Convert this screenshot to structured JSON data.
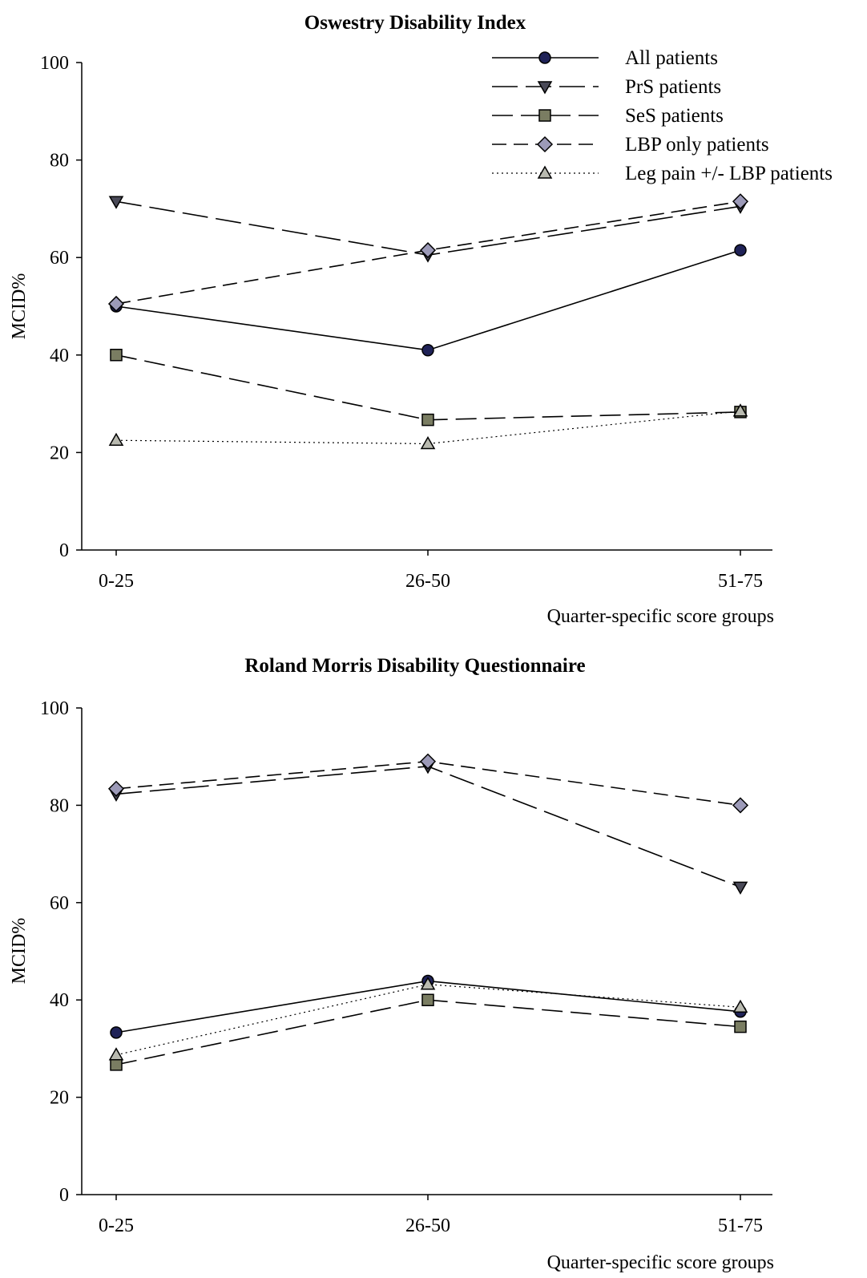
{
  "chart_data": [
    {
      "type": "line",
      "title": "Oswestry Disability Index",
      "xlabel": "Quarter-specific score groups",
      "ylabel": "MCID%",
      "categories": [
        "0-25",
        "26-50",
        "51-75"
      ],
      "ylim": [
        0,
        100
      ],
      "yticks": [
        "0",
        "20",
        "40",
        "60",
        "80",
        "100"
      ],
      "legend": "top-right",
      "series": [
        {
          "name": "All patients",
          "values": [
            50,
            41,
            61.5
          ]
        },
        {
          "name": "PrS patients",
          "values": [
            71.5,
            60.5,
            70.5
          ]
        },
        {
          "name": "SeS patients",
          "values": [
            40,
            26.7,
            28.3
          ]
        },
        {
          "name": "LBP only patients",
          "values": [
            50.5,
            61.5,
            71.5
          ]
        },
        {
          "name": "Leg pain +/- LBP patients",
          "values": [
            22.5,
            21.8,
            28.5
          ]
        }
      ]
    },
    {
      "type": "line",
      "title": "Roland Morris Disability Questionnaire",
      "xlabel": "Quarter-specific score groups",
      "ylabel": "MCID%",
      "categories": [
        "0-25",
        "26-50",
        "51-75"
      ],
      "ylim": [
        0,
        100
      ],
      "yticks": [
        "0",
        "20",
        "40",
        "60",
        "80",
        "100"
      ],
      "series": [
        {
          "name": "All patients",
          "values": [
            33.3,
            43.9,
            37.6
          ]
        },
        {
          "name": "PrS patients",
          "values": [
            82.3,
            88,
            63.2
          ]
        },
        {
          "name": "SeS patients",
          "values": [
            26.7,
            40,
            34.5
          ]
        },
        {
          "name": "LBP only patients",
          "values": [
            83.4,
            89,
            80
          ]
        },
        {
          "name": "Leg pain +/- LBP patients",
          "values": [
            28.7,
            43.2,
            38.5
          ]
        }
      ]
    }
  ],
  "series_style": [
    {
      "marker": "circle",
      "fill": "#1f2257",
      "dash": ""
    },
    {
      "marker": "triangle-down",
      "fill": "#4a4a58",
      "dash": "32,10"
    },
    {
      "marker": "square",
      "fill": "#7a7d62",
      "dash": "26,10"
    },
    {
      "marker": "diamond",
      "fill": "#9c9ab8",
      "dash": "18,9"
    },
    {
      "marker": "triangle-up",
      "fill": "#b9bab0",
      "dash": "2,4"
    }
  ]
}
